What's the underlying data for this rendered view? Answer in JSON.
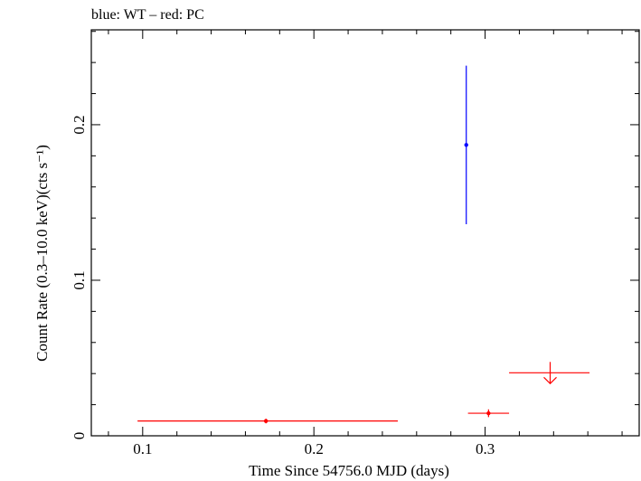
{
  "chart_data": {
    "type": "scatter",
    "title": "blue: WT – red: PC",
    "xlabel": "Time Since 54756.0 MJD (days)",
    "ylabel": "Count Rate (0.3–10.0 keV)(cts s⁻¹)",
    "xlim": [
      0.07,
      0.39
    ],
    "ylim": [
      0,
      0.261
    ],
    "x_ticks": [
      0.1,
      0.2,
      0.3
    ],
    "x_tick_labels": [
      "0.1",
      "0.2",
      "0.3"
    ],
    "y_ticks": [
      0,
      0.1,
      0.2
    ],
    "y_tick_labels": [
      "0",
      "0.1",
      "0.2"
    ],
    "grid": false,
    "series": [
      {
        "name": "WT",
        "color": "#0000ff",
        "points": [
          {
            "x": 0.289,
            "y": 0.187,
            "xerr_low": 0.0,
            "xerr_high": 0.0,
            "yerr_low": 0.051,
            "yerr_high": 0.051
          }
        ],
        "upper_limits": []
      },
      {
        "name": "PC",
        "color": "#ff0000",
        "points": [
          {
            "x": 0.172,
            "y": 0.0095,
            "xerr_low": 0.075,
            "xerr_high": 0.077,
            "yerr_low": 0.0015,
            "yerr_high": 0.0015
          },
          {
            "x": 0.302,
            "y": 0.0145,
            "xerr_low": 0.012,
            "xerr_high": 0.012,
            "yerr_low": 0.0025,
            "yerr_high": 0.0025
          }
        ],
        "upper_limits": [
          {
            "x": 0.338,
            "y": 0.0405,
            "xerr_low": 0.024,
            "xerr_high": 0.023
          }
        ]
      }
    ]
  }
}
